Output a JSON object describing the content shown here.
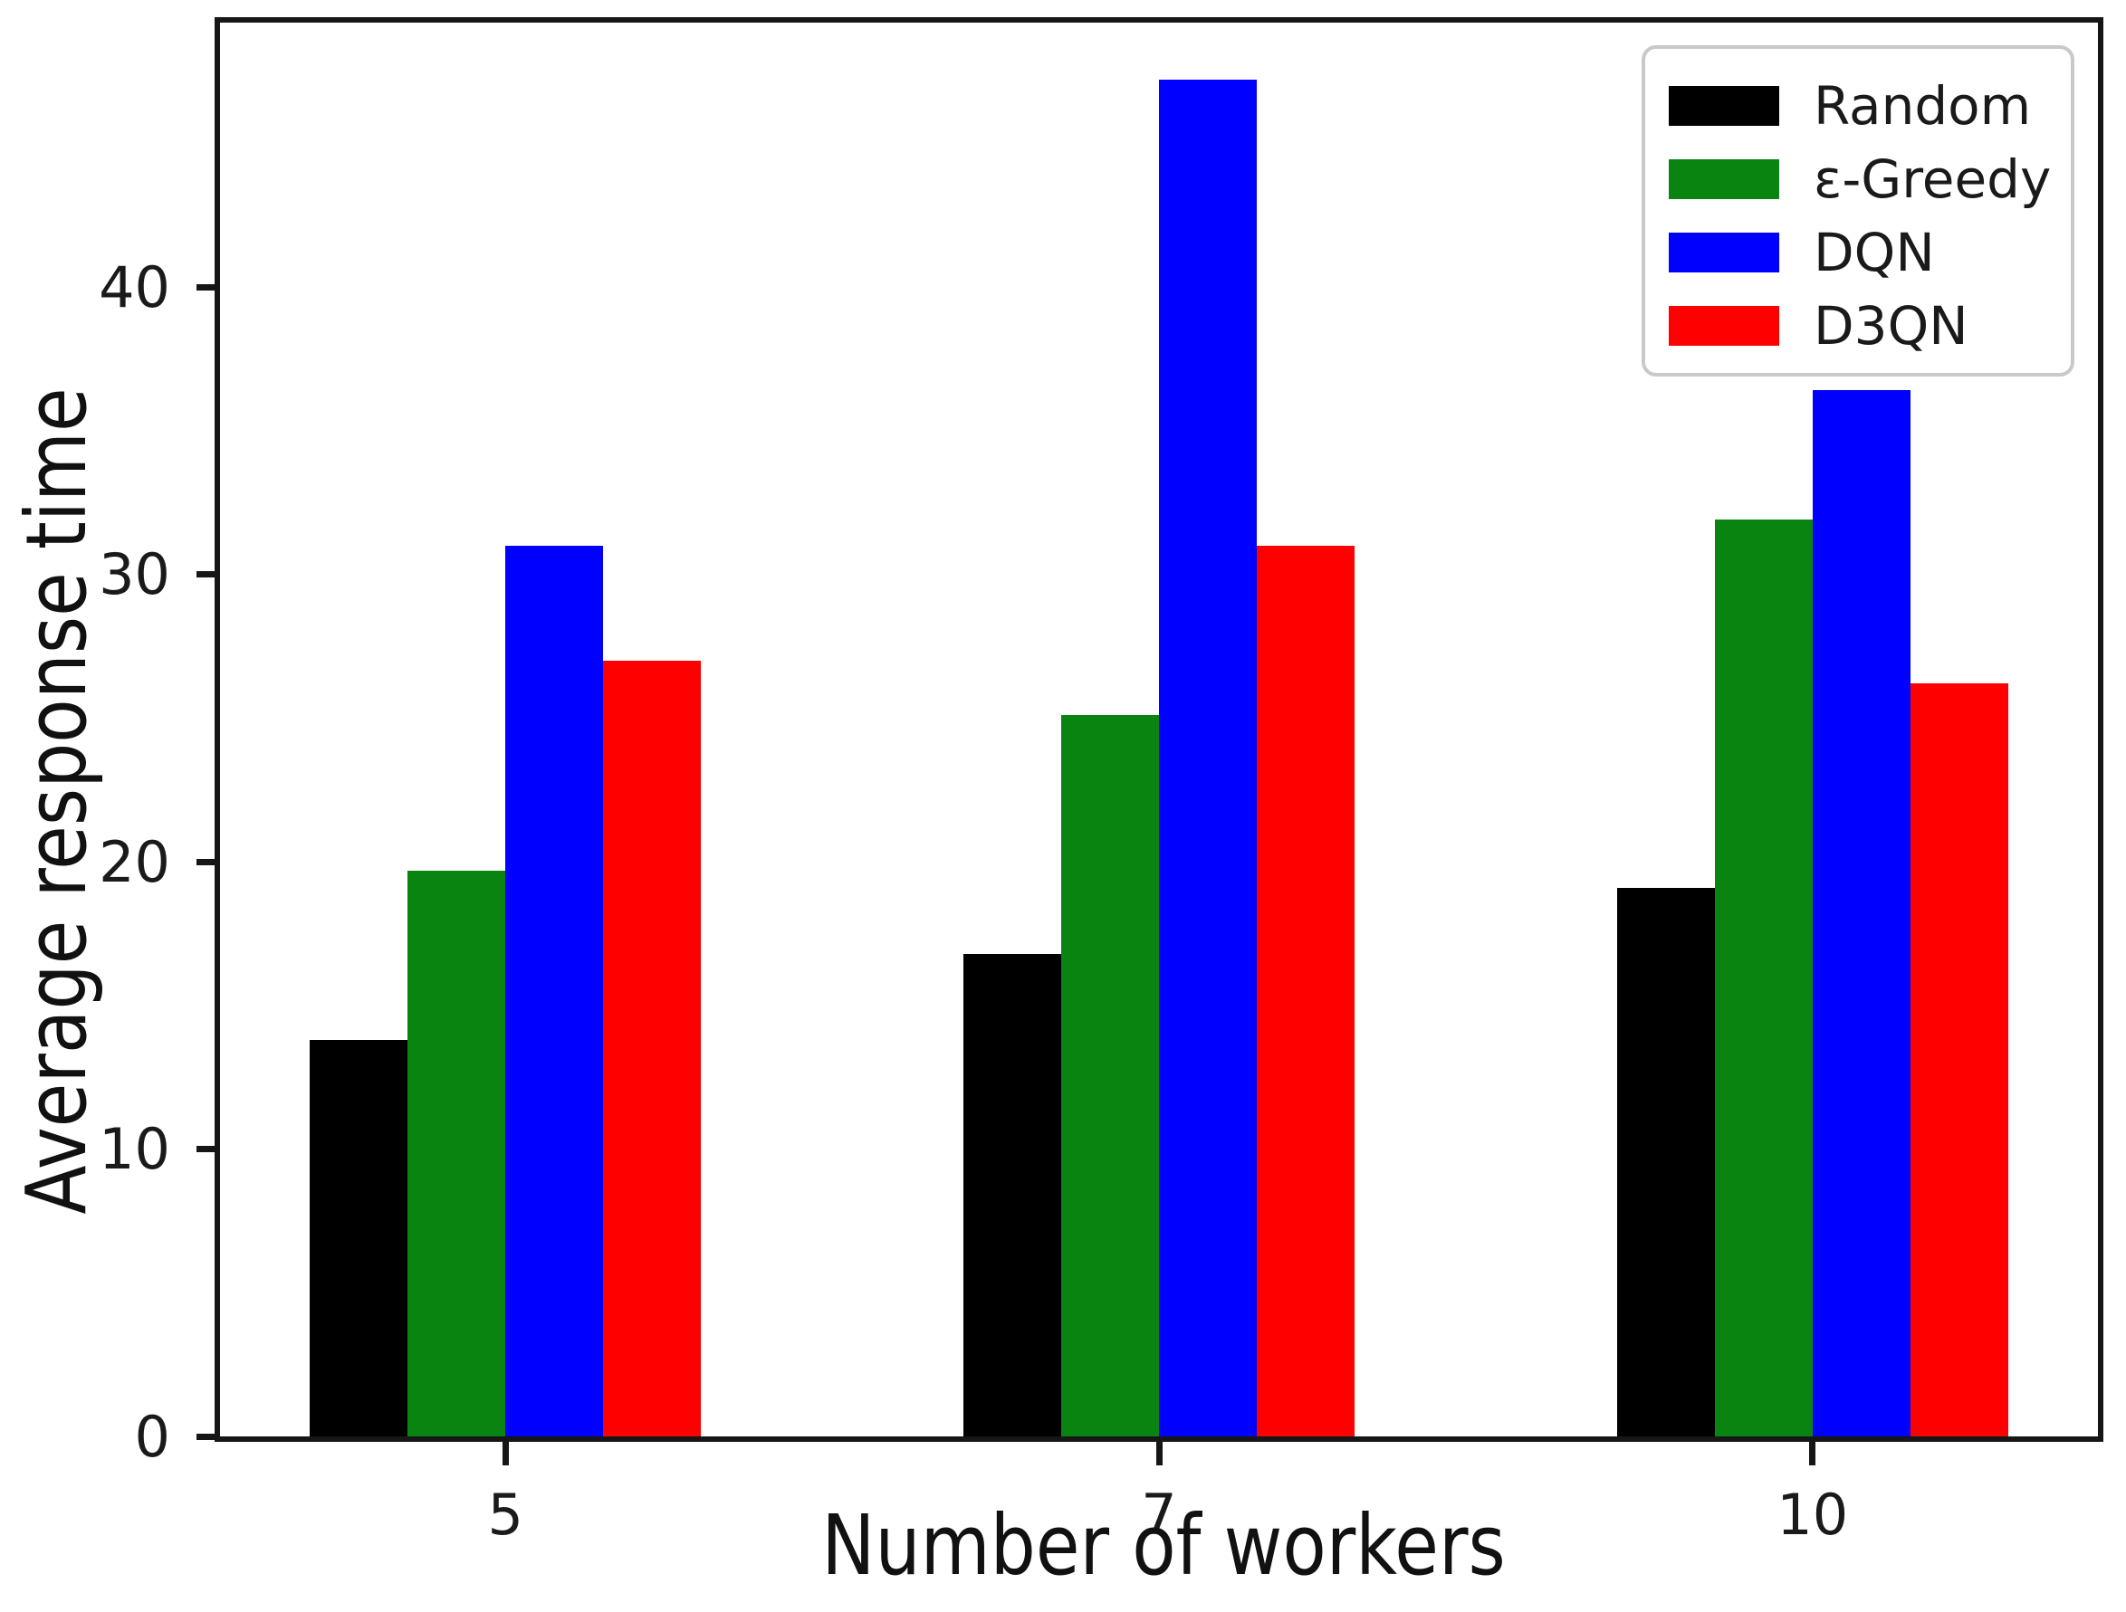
{
  "chart_data": {
    "type": "bar",
    "title": "",
    "xlabel": "Number of workers",
    "ylabel": "Average response time",
    "categories": [
      "5",
      "7",
      "10"
    ],
    "series": [
      {
        "name": "Random",
        "color": "#000000",
        "values": [
          13.8,
          16.8,
          19.1
        ]
      },
      {
        "name": "ε-Greedy",
        "color": "#0a8410",
        "values": [
          19.7,
          25.1,
          31.9
        ]
      },
      {
        "name": "DQN",
        "color": "#0000ff",
        "values": [
          31.0,
          47.2,
          36.4
        ]
      },
      {
        "name": "D3QN",
        "color": "#ff0000",
        "values": [
          27.0,
          31.0,
          26.2
        ]
      }
    ],
    "yticks": [
      0,
      10,
      20,
      30,
      40
    ],
    "ylim": [
      0,
      49.2
    ],
    "grid": false,
    "legend_position": "upper right",
    "axis_color": "#161616",
    "background_color": "#ffffff"
  }
}
